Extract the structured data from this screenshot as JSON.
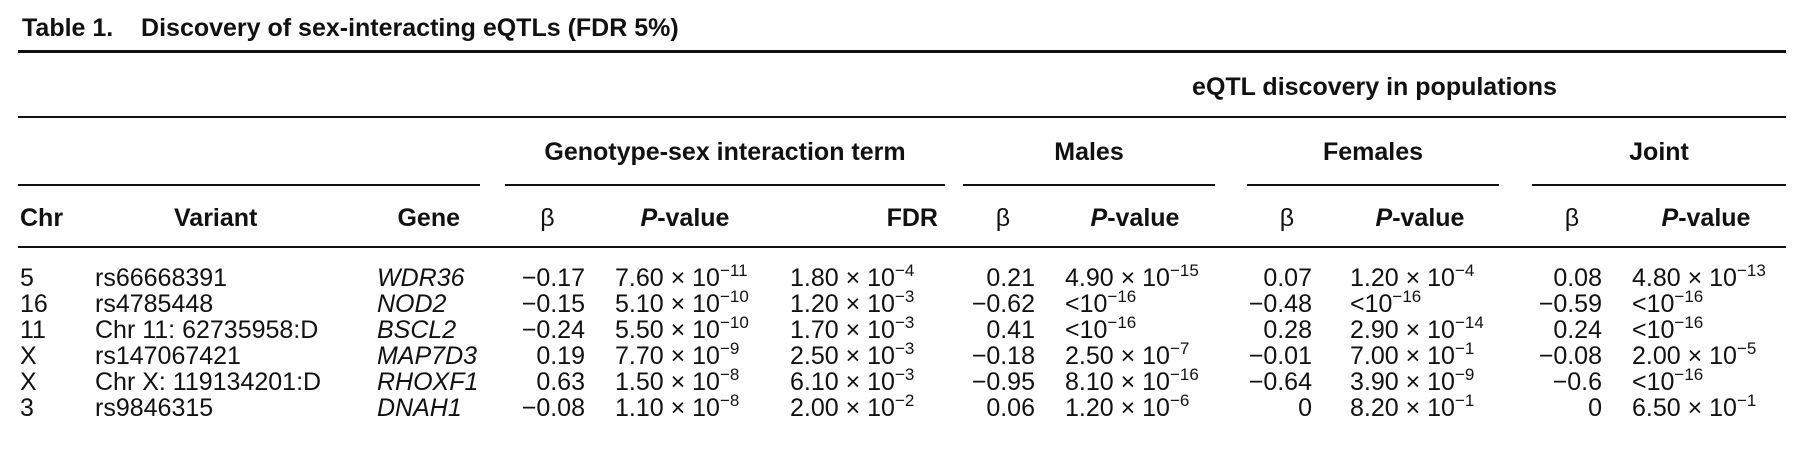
{
  "caption": {
    "label": "Table 1.",
    "text": "Discovery of sex-interacting eQTLs (FDR 5%)"
  },
  "headers": {
    "group_top": "eQTL discovery in populations",
    "group_interaction": "Genotype-sex interaction term",
    "group_males": "Males",
    "group_females": "Females",
    "group_joint": "Joint",
    "chr": "Chr",
    "variant": "Variant",
    "gene": "Gene",
    "beta": "β",
    "p_italic": "P",
    "p_rest": "-value",
    "fdr": "FDR"
  },
  "rows": [
    {
      "chr": "5",
      "variant": "rs66668391",
      "gene": "WDR36",
      "int_beta": "−0.17",
      "int_p": {
        "m": "7.60 × 10",
        "e": "−11"
      },
      "int_fdr": {
        "m": "1.80 × 10",
        "e": "−4"
      },
      "m_beta": "0.21",
      "m_p": {
        "m": "4.90 × 10",
        "e": "−15"
      },
      "f_beta": "0.07",
      "f_p": {
        "m": "1.20 × 10",
        "e": "−4"
      },
      "j_beta": "0.08",
      "j_p": {
        "m": "4.80 × 10",
        "e": "−13"
      }
    },
    {
      "chr": "16",
      "variant": "rs4785448",
      "gene": "NOD2",
      "int_beta": "−0.15",
      "int_p": {
        "m": "5.10 × 10",
        "e": "−10"
      },
      "int_fdr": {
        "m": "1.20 × 10",
        "e": "−3"
      },
      "m_beta": "−0.62",
      "m_p": {
        "m": "<10",
        "e": "−16"
      },
      "f_beta": "−0.48",
      "f_p": {
        "m": "<10",
        "e": "−16"
      },
      "j_beta": "−0.59",
      "j_p": {
        "m": "<10",
        "e": "−16"
      }
    },
    {
      "chr": "11",
      "variant": "Chr 11: 62735958:D",
      "gene": "BSCL2",
      "int_beta": "−0.24",
      "int_p": {
        "m": "5.50 × 10",
        "e": "−10"
      },
      "int_fdr": {
        "m": "1.70 × 10",
        "e": "−3"
      },
      "m_beta": "0.41",
      "m_p": {
        "m": "<10",
        "e": "−16"
      },
      "f_beta": "0.28",
      "f_p": {
        "m": "2.90 × 10",
        "e": "−14"
      },
      "j_beta": "0.24",
      "j_p": {
        "m": "<10",
        "e": "−16"
      }
    },
    {
      "chr": "X",
      "variant": "rs147067421",
      "gene": "MAP7D3",
      "int_beta": "0.19",
      "int_p": {
        "m": "7.70 × 10",
        "e": "−9"
      },
      "int_fdr": {
        "m": "2.50 × 10",
        "e": "−3"
      },
      "m_beta": "−0.18",
      "m_p": {
        "m": "2.50 × 10",
        "e": "−7"
      },
      "f_beta": "−0.01",
      "f_p": {
        "m": "7.00 × 10",
        "e": "−1"
      },
      "j_beta": "−0.08",
      "j_p": {
        "m": "2.00 × 10",
        "e": "−5"
      }
    },
    {
      "chr": "X",
      "variant": "Chr X: 119134201:D",
      "gene": "RHOXF1",
      "int_beta": "0.63",
      "int_p": {
        "m": "1.50 × 10",
        "e": "−8"
      },
      "int_fdr": {
        "m": "6.10 × 10",
        "e": "−3"
      },
      "m_beta": "−0.95",
      "m_p": {
        "m": "8.10 × 10",
        "e": "−16"
      },
      "f_beta": "−0.64",
      "f_p": {
        "m": "3.90 × 10",
        "e": "−9"
      },
      "j_beta": "−0.6",
      "j_p": {
        "m": "<10",
        "e": "−16"
      }
    },
    {
      "chr": "3",
      "variant": "rs9846315",
      "gene": "DNAH1",
      "int_beta": "−0.08",
      "int_p": {
        "m": "1.10 × 10",
        "e": "−8"
      },
      "int_fdr": {
        "m": "2.00 × 10",
        "e": "−2"
      },
      "m_beta": "0.06",
      "m_p": {
        "m": "1.20 × 10",
        "e": "−6"
      },
      "f_beta": "0",
      "f_p": {
        "m": "8.20 × 10",
        "e": "−1"
      },
      "j_beta": "0",
      "j_p": {
        "m": "6.50 × 10",
        "e": "−1"
      }
    }
  ]
}
